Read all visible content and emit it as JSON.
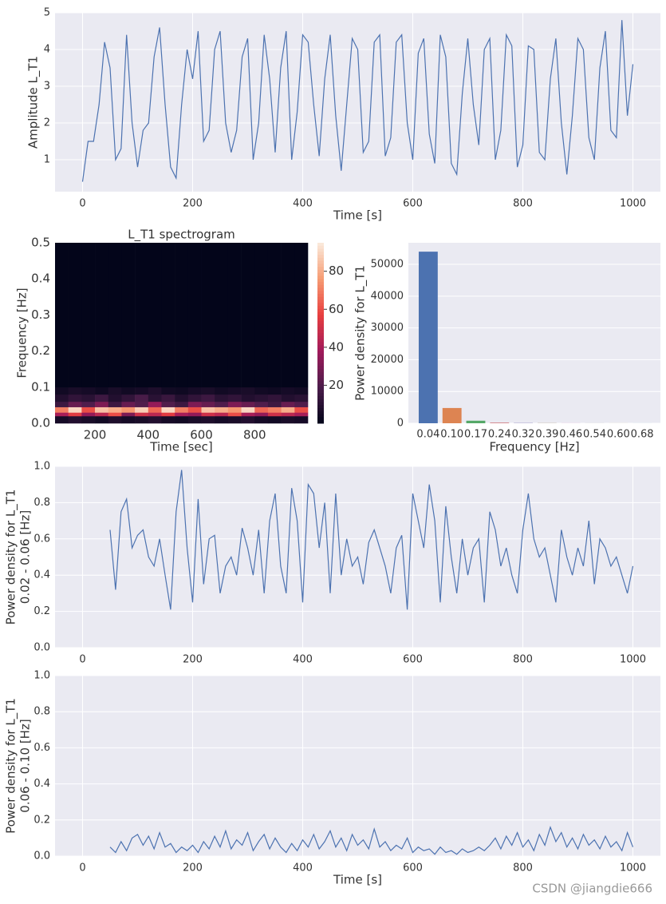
{
  "chart_data": [
    {
      "type": "line",
      "xlabel": "Time [s]",
      "ylabel": "Amplitude L_T1",
      "color": "#4c72b0",
      "grid": true,
      "xlim": [
        -50,
        1050
      ],
      "xticks": [
        0,
        200,
        400,
        600,
        800,
        1000
      ],
      "ylim": [
        0.13,
        5
      ],
      "yticks": [
        1,
        2,
        3,
        4,
        5
      ],
      "x": [
        0,
        10,
        20,
        30,
        40,
        50,
        60,
        70,
        80,
        90,
        100,
        110,
        120,
        130,
        140,
        150,
        160,
        170,
        180,
        190,
        200,
        210,
        220,
        230,
        240,
        250,
        260,
        270,
        280,
        290,
        300,
        310,
        320,
        330,
        340,
        350,
        360,
        370,
        380,
        390,
        400,
        410,
        420,
        430,
        440,
        450,
        460,
        470,
        480,
        490,
        500,
        510,
        520,
        530,
        540,
        550,
        560,
        570,
        580,
        590,
        600,
        610,
        620,
        630,
        640,
        650,
        660,
        670,
        680,
        690,
        700,
        710,
        720,
        730,
        740,
        750,
        760,
        770,
        780,
        790,
        800,
        810,
        820,
        830,
        840,
        850,
        860,
        870,
        880,
        890,
        900,
        910,
        920,
        930,
        940,
        950,
        960,
        970,
        980,
        990,
        1000
      ],
      "values": [
        0.4,
        1.5,
        1.5,
        2.5,
        4.2,
        3.5,
        1.0,
        1.3,
        4.4,
        2.0,
        0.8,
        1.8,
        2.0,
        3.8,
        4.6,
        2.5,
        0.8,
        0.5,
        2.5,
        4.0,
        3.2,
        4.5,
        1.5,
        1.8,
        4.0,
        4.5,
        2.0,
        1.2,
        1.8,
        3.8,
        4.3,
        1.0,
        2.0,
        4.4,
        3.2,
        1.2,
        3.5,
        4.5,
        1.0,
        2.3,
        4.4,
        4.2,
        2.5,
        1.1,
        3.2,
        4.4,
        2.2,
        0.7,
        2.5,
        4.3,
        4.0,
        1.2,
        1.5,
        4.2,
        4.4,
        1.1,
        1.6,
        4.2,
        4.4,
        2.0,
        1.0,
        3.9,
        4.3,
        1.7,
        0.9,
        4.4,
        3.8,
        0.9,
        0.6,
        2.8,
        4.3,
        2.5,
        1.4,
        4.0,
        4.3,
        1.0,
        1.8,
        4.4,
        4.1,
        0.8,
        1.4,
        4.1,
        4.0,
        1.2,
        1.0,
        3.2,
        4.3,
        2.0,
        0.6,
        2.2,
        4.3,
        4.0,
        1.6,
        1.0,
        3.5,
        4.5,
        1.8,
        1.6,
        4.8,
        2.2,
        3.6
      ]
    },
    {
      "type": "heatmap",
      "title": "L_T1 spectrogram",
      "xlabel": "Time [sec]",
      "ylabel": "Frequency [Hz]",
      "xlim": [
        50,
        1000
      ],
      "xticks": [
        200,
        400,
        600,
        800
      ],
      "ylim": [
        0,
        0.5
      ],
      "yticks": [
        {
          "value": 0,
          "label": "0.0"
        },
        0.1,
        0.2,
        0.3,
        0.4,
        0.5
      ],
      "x_bins": [
        50,
        100,
        150,
        200,
        250,
        300,
        350,
        400,
        450,
        500,
        550,
        600,
        650,
        700,
        750,
        800,
        850,
        900,
        950,
        1000
      ],
      "y_bins": [
        0,
        0.02,
        0.03,
        0.045,
        0.06,
        0.08,
        0.1,
        0.5
      ],
      "z": [
        [
          5,
          8,
          6,
          4,
          7,
          5,
          6,
          8,
          5,
          4,
          6,
          7,
          5,
          6,
          8,
          5,
          4,
          6,
          5
        ],
        [
          40,
          55,
          35,
          45,
          60,
          30,
          50,
          45,
          55,
          40,
          35,
          50,
          45,
          60,
          40,
          35,
          50,
          45,
          40
        ],
        [
          70,
          90,
          60,
          85,
          80,
          75,
          88,
          65,
          90,
          70,
          60,
          85,
          80,
          75,
          90,
          65,
          70,
          80,
          60
        ],
        [
          15,
          25,
          20,
          30,
          15,
          25,
          20,
          35,
          20,
          15,
          30,
          25,
          20,
          30,
          25,
          20,
          15,
          25,
          20
        ],
        [
          8,
          12,
          10,
          15,
          8,
          12,
          18,
          10,
          14,
          8,
          12,
          15,
          10,
          12,
          8,
          10,
          12,
          8,
          10
        ],
        [
          4,
          6,
          5,
          3,
          6,
          4,
          5,
          7,
          4,
          3,
          5,
          6,
          4,
          5,
          6,
          4,
          3,
          5,
          4
        ],
        [
          0,
          0,
          0,
          0,
          0,
          0,
          0,
          0,
          0,
          0,
          0,
          0,
          0,
          0,
          0,
          0,
          0,
          0,
          0
        ]
      ],
      "clim": [
        0,
        95
      ],
      "cticks": [
        20,
        40,
        60,
        80
      ],
      "colormap": [
        "#03051a",
        "#4c1d4b",
        "#a11a5b",
        "#e83f3f",
        "#f69c73",
        "#faebdd"
      ]
    },
    {
      "type": "bar",
      "xlabel": "Frequency [Hz]",
      "ylabel": "Power density for L_T1",
      "grid": true,
      "categories": [
        "0.04",
        "0.10",
        "0.17",
        "0.24",
        "0.32",
        "0.39",
        "0.46",
        "0.54",
        "0.60",
        "0.68"
      ],
      "values": [
        54000,
        4800,
        800,
        150,
        80,
        50,
        30,
        20,
        15,
        10
      ],
      "colors": [
        "#4c72b0",
        "#dd8452",
        "#55a868",
        "#c44e52",
        "#8172b3",
        "#937860",
        "#da8bc3",
        "#8c8c8c",
        "#ccb974",
        "#64b5cd"
      ],
      "ylim": [
        0,
        56800
      ],
      "yticks": [
        0,
        10000,
        20000,
        30000,
        40000,
        50000
      ]
    },
    {
      "type": "line",
      "ylabel": [
        "Power density for L_T1",
        "0.02 - 0.06 [Hz]"
      ],
      "color": "#4c72b0",
      "grid": true,
      "xlim": [
        -50,
        1050
      ],
      "xticks": [
        0,
        200,
        400,
        600,
        800,
        1000
      ],
      "ylim": [
        0,
        1
      ],
      "yticks": [
        {
          "value": 0,
          "label": "0.0"
        },
        0.2,
        0.4,
        0.6,
        0.8,
        {
          "value": 1,
          "label": "1.0"
        }
      ],
      "x": [
        50,
        60,
        70,
        80,
        90,
        100,
        110,
        120,
        130,
        140,
        150,
        160,
        170,
        180,
        190,
        200,
        210,
        220,
        230,
        240,
        250,
        260,
        270,
        280,
        290,
        300,
        310,
        320,
        330,
        340,
        350,
        360,
        370,
        380,
        390,
        400,
        410,
        420,
        430,
        440,
        450,
        460,
        470,
        480,
        490,
        500,
        510,
        520,
        530,
        540,
        550,
        560,
        570,
        580,
        590,
        600,
        610,
        620,
        630,
        640,
        650,
        660,
        670,
        680,
        690,
        700,
        710,
        720,
        730,
        740,
        750,
        760,
        770,
        780,
        790,
        800,
        810,
        820,
        830,
        840,
        850,
        860,
        870,
        880,
        890,
        900,
        910,
        920,
        930,
        940,
        950,
        960,
        970,
        980,
        990,
        1000
      ],
      "values": [
        0.65,
        0.32,
        0.75,
        0.82,
        0.55,
        0.62,
        0.65,
        0.5,
        0.45,
        0.6,
        0.4,
        0.21,
        0.75,
        0.98,
        0.55,
        0.25,
        0.82,
        0.35,
        0.6,
        0.62,
        0.3,
        0.45,
        0.5,
        0.4,
        0.66,
        0.55,
        0.4,
        0.65,
        0.3,
        0.7,
        0.85,
        0.45,
        0.3,
        0.88,
        0.7,
        0.25,
        0.9,
        0.85,
        0.55,
        0.8,
        0.3,
        0.85,
        0.4,
        0.6,
        0.45,
        0.5,
        0.35,
        0.58,
        0.65,
        0.55,
        0.45,
        0.3,
        0.55,
        0.62,
        0.21,
        0.85,
        0.7,
        0.55,
        0.9,
        0.7,
        0.25,
        0.78,
        0.5,
        0.3,
        0.6,
        0.4,
        0.55,
        0.6,
        0.25,
        0.75,
        0.65,
        0.45,
        0.55,
        0.4,
        0.3,
        0.65,
        0.85,
        0.6,
        0.5,
        0.55,
        0.4,
        0.25,
        0.65,
        0.5,
        0.4,
        0.55,
        0.45,
        0.7,
        0.35,
        0.6,
        0.55,
        0.45,
        0.5,
        0.4,
        0.3,
        0.45
      ]
    },
    {
      "type": "line",
      "xlabel": "Time [s]",
      "ylabel": [
        "Power density for L_T1",
        "0.06 - 0.10 [Hz]"
      ],
      "color": "#4c72b0",
      "grid": true,
      "xlim": [
        -50,
        1050
      ],
      "xticks": [
        0,
        200,
        400,
        600,
        800,
        1000
      ],
      "ylim": [
        0,
        1
      ],
      "yticks": [
        {
          "value": 0,
          "label": "0.0"
        },
        0.2,
        0.4,
        0.6,
        0.8,
        {
          "value": 1,
          "label": "1.0"
        }
      ],
      "x": [
        50,
        60,
        70,
        80,
        90,
        100,
        110,
        120,
        130,
        140,
        150,
        160,
        170,
        180,
        190,
        200,
        210,
        220,
        230,
        240,
        250,
        260,
        270,
        280,
        290,
        300,
        310,
        320,
        330,
        340,
        350,
        360,
        370,
        380,
        390,
        400,
        410,
        420,
        430,
        440,
        450,
        460,
        470,
        480,
        490,
        500,
        510,
        520,
        530,
        540,
        550,
        560,
        570,
        580,
        590,
        600,
        610,
        620,
        630,
        640,
        650,
        660,
        670,
        680,
        690,
        700,
        710,
        720,
        730,
        740,
        750,
        760,
        770,
        780,
        790,
        800,
        810,
        820,
        830,
        840,
        850,
        860,
        870,
        880,
        890,
        900,
        910,
        920,
        930,
        940,
        950,
        960,
        970,
        980,
        990,
        1000
      ],
      "values": [
        0.05,
        0.02,
        0.08,
        0.03,
        0.1,
        0.12,
        0.06,
        0.11,
        0.04,
        0.13,
        0.05,
        0.07,
        0.02,
        0.05,
        0.03,
        0.06,
        0.02,
        0.08,
        0.04,
        0.11,
        0.05,
        0.14,
        0.04,
        0.09,
        0.06,
        0.13,
        0.03,
        0.08,
        0.12,
        0.04,
        0.1,
        0.05,
        0.02,
        0.07,
        0.03,
        0.09,
        0.05,
        0.12,
        0.04,
        0.08,
        0.14,
        0.05,
        0.1,
        0.03,
        0.12,
        0.06,
        0.09,
        0.04,
        0.15,
        0.05,
        0.08,
        0.03,
        0.06,
        0.04,
        0.1,
        0.02,
        0.05,
        0.03,
        0.04,
        0.01,
        0.05,
        0.02,
        0.03,
        0.01,
        0.04,
        0.02,
        0.03,
        0.05,
        0.03,
        0.06,
        0.1,
        0.04,
        0.11,
        0.06,
        0.13,
        0.05,
        0.09,
        0.03,
        0.12,
        0.06,
        0.16,
        0.08,
        0.13,
        0.05,
        0.1,
        0.04,
        0.12,
        0.06,
        0.09,
        0.04,
        0.11,
        0.05,
        0.08,
        0.03,
        0.13,
        0.05
      ]
    }
  ],
  "watermark": "CSDN @jiangdie666"
}
